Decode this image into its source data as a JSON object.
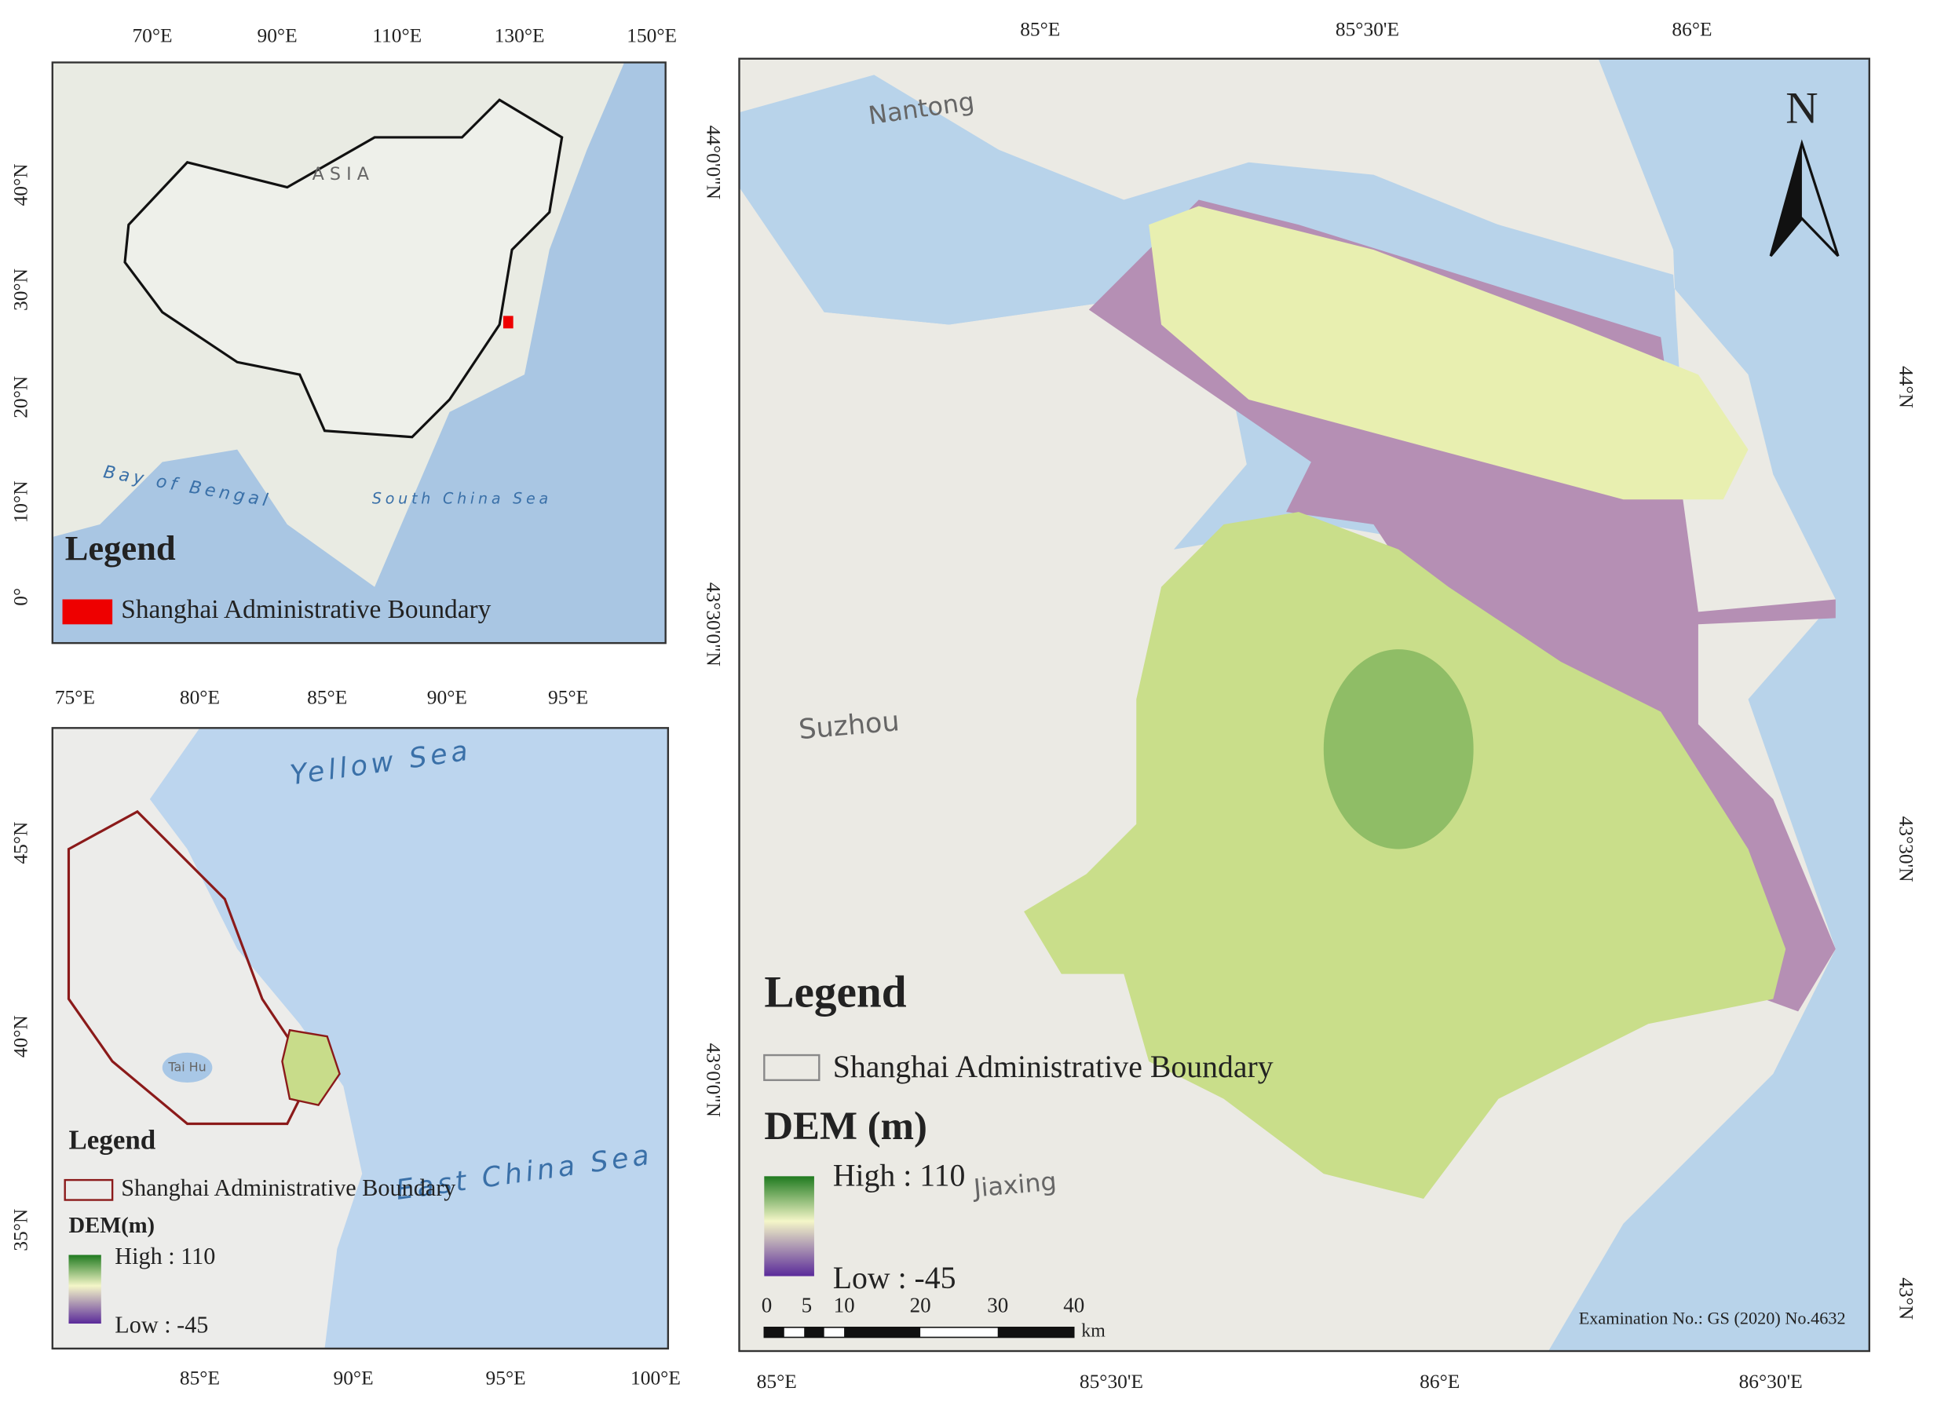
{
  "overview_map": {
    "top_labels": [
      "70°E",
      "90°E",
      "110°E",
      "130°E",
      "150°E"
    ],
    "left_labels": [
      "40°N",
      "30°N",
      "20°N",
      "10°N",
      "0°"
    ],
    "map_labels": [
      "A S I A",
      "Bay of Bengal",
      "South China Sea"
    ],
    "legend": {
      "title": "Legend",
      "item": "Shanghai Administrative Boundary"
    }
  },
  "regional_map": {
    "top_labels": [
      "75°E",
      "80°E",
      "85°E",
      "90°E",
      "95°E"
    ],
    "bottom_labels": [
      "85°E",
      "90°E",
      "95°E",
      "100°E"
    ],
    "left_labels": [
      "45°N",
      "40°N",
      "35°N"
    ],
    "map_labels": [
      "Yellow Sea",
      "East China Sea",
      "Tai Hu"
    ],
    "legend": {
      "title": "Legend",
      "item": "Shanghai Administrative Boundary",
      "dem_title": "DEM(m)",
      "high": "High : 110",
      "low": "Low : -45"
    }
  },
  "main_map": {
    "top_labels": [
      "85°E",
      "85°30'E",
      "86°E"
    ],
    "bottom_labels": [
      "85°E",
      "85°30'E",
      "86°E",
      "86°30'E"
    ],
    "left_labels": [
      "44°0'0\"N",
      "43°30'0\"N",
      "43°0'0\"N"
    ],
    "right_labels": [
      "44°N",
      "43°30'N",
      "43°N"
    ],
    "places": [
      "Nantong",
      "Suzhou",
      "Jiaxing"
    ],
    "north": "N",
    "legend": {
      "title": "Legend",
      "item": "Shanghai Administrative Boundary",
      "dem_title": "DEM (m)",
      "high": "High : 110",
      "low": "Low : -45"
    },
    "scale_bar": {
      "ticks": [
        "0",
        "5",
        "10",
        "20",
        "30",
        "40"
      ],
      "unit": "km"
    },
    "examination": "Examination No.: GS (2020) No.4632"
  }
}
